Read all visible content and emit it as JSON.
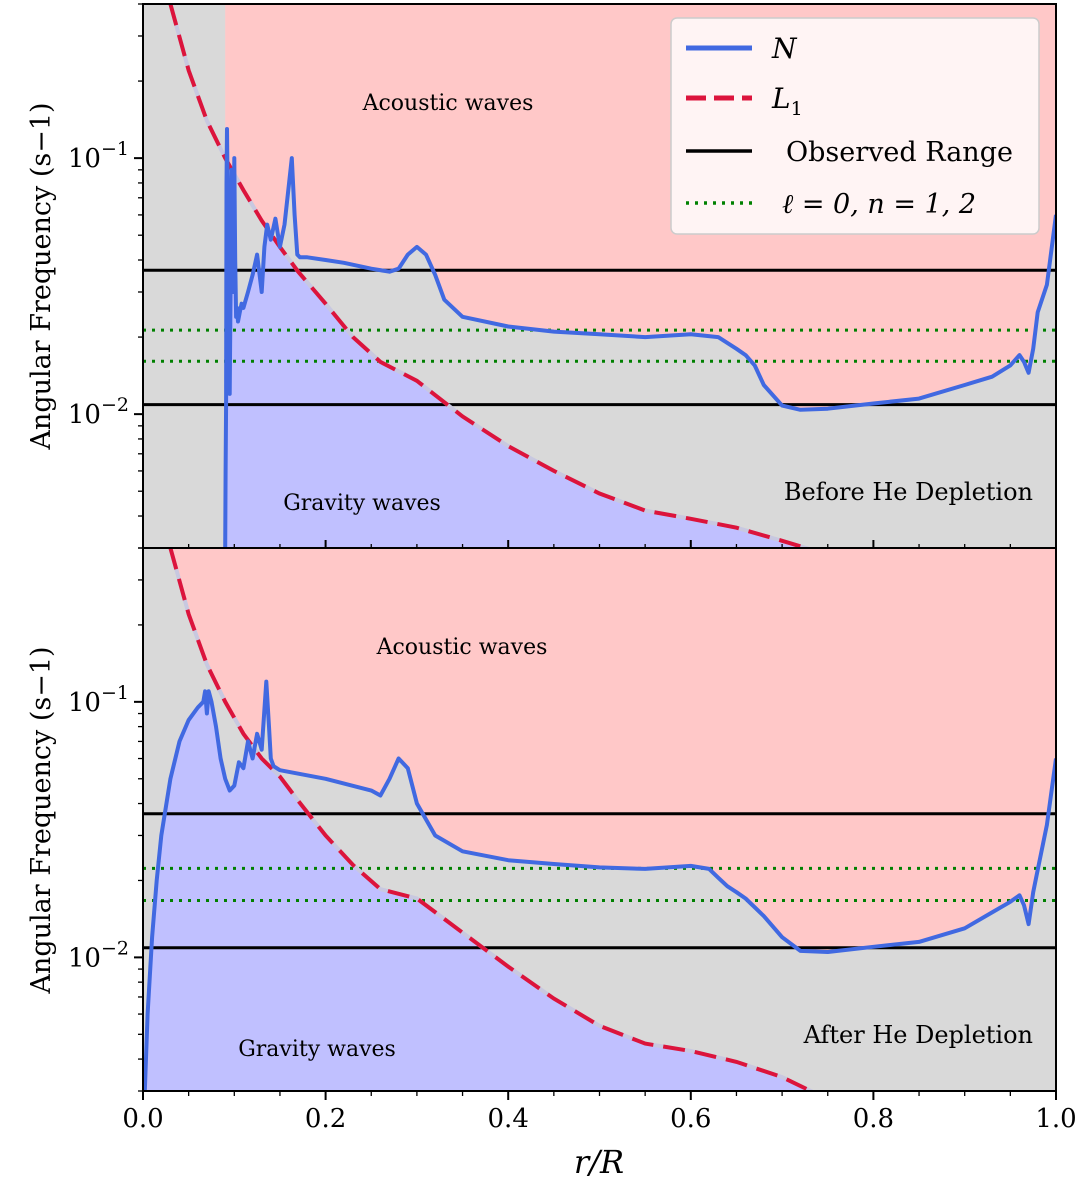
{
  "figure": {
    "shared_xlabel_main": "r/R",
    "legend": [
      {
        "label": "N",
        "color": "#4169E1",
        "style": "solid"
      },
      {
        "label": "L1",
        "color": "#DC143C",
        "style": "dashed"
      },
      {
        "label": "Observed Range",
        "color": "#000000",
        "style": "solid"
      },
      {
        "label": "ℓ = 0, n = 1, 2",
        "color": "#008000",
        "style": "dotted"
      }
    ],
    "region_colors": {
      "acoustic": "#FFC8C8",
      "gravity": "#C0C0FF",
      "neutral": "#D9D9D9"
    }
  },
  "chart_data": [
    {
      "type": "line",
      "panel": "Before He Depletion",
      "annotation": "Before He Depletion",
      "region_labels": {
        "acoustic": "Acoustic waves",
        "gravity": "Gravity waves"
      },
      "xlabel": "",
      "ylabel": "Angular Frequency (s−1)",
      "xlim": [
        0.0,
        1.0
      ],
      "ylim": [
        0.003,
        0.4
      ],
      "yscale": "log",
      "ytick_labels": [
        "10−2",
        "10−1"
      ],
      "ytick_values": [
        0.01,
        0.1
      ],
      "observed_range": [
        0.0109,
        0.0365
      ],
      "mode_frequencies": [
        0.0161,
        0.0213
      ],
      "series": [
        {
          "name": "N",
          "x": [
            0.09,
            0.0905,
            0.091,
            0.0915,
            0.092,
            0.093,
            0.094,
            0.095,
            0.097,
            0.099,
            0.1,
            0.101,
            0.102,
            0.103,
            0.104,
            0.106,
            0.108,
            0.11,
            0.115,
            0.12,
            0.125,
            0.13,
            0.133,
            0.136,
            0.14,
            0.145,
            0.15,
            0.155,
            0.16,
            0.163,
            0.166,
            0.169,
            0.172,
            0.18,
            0.2,
            0.22,
            0.25,
            0.27,
            0.28,
            0.29,
            0.3,
            0.31,
            0.32,
            0.33,
            0.35,
            0.4,
            0.45,
            0.5,
            0.55,
            0.6,
            0.63,
            0.65,
            0.66,
            0.67,
            0.68,
            0.7,
            0.72,
            0.75,
            0.8,
            0.85,
            0.9,
            0.93,
            0.95,
            0.96,
            0.965,
            0.97,
            0.975,
            0.98,
            0.99,
            1.0
          ],
          "y": [
            0.003,
            0.006,
            0.011,
            0.08,
            0.13,
            0.06,
            0.025,
            0.012,
            0.09,
            0.03,
            0.1,
            0.04,
            0.024,
            0.026,
            0.023,
            0.025,
            0.027,
            0.026,
            0.03,
            0.035,
            0.042,
            0.03,
            0.045,
            0.055,
            0.048,
            0.058,
            0.045,
            0.055,
            0.08,
            0.1,
            0.06,
            0.042,
            0.041,
            0.041,
            0.04,
            0.039,
            0.037,
            0.036,
            0.037,
            0.042,
            0.045,
            0.042,
            0.035,
            0.028,
            0.024,
            0.022,
            0.021,
            0.0205,
            0.02,
            0.0205,
            0.02,
            0.018,
            0.017,
            0.0155,
            0.013,
            0.0108,
            0.0104,
            0.0105,
            0.011,
            0.0115,
            0.013,
            0.014,
            0.0155,
            0.017,
            0.016,
            0.0145,
            0.018,
            0.025,
            0.032,
            0.06
          ]
        },
        {
          "name": "L1",
          "x": [
            0.03,
            0.05,
            0.07,
            0.09,
            0.11,
            0.13,
            0.15,
            0.17,
            0.2,
            0.23,
            0.26,
            0.3,
            0.35,
            0.4,
            0.45,
            0.5,
            0.55,
            0.6,
            0.65,
            0.7,
            0.74
          ],
          "y": [
            0.4,
            0.22,
            0.14,
            0.1,
            0.075,
            0.057,
            0.045,
            0.036,
            0.027,
            0.02,
            0.016,
            0.0135,
            0.0098,
            0.0075,
            0.006,
            0.0049,
            0.0042,
            0.0039,
            0.0036,
            0.0032,
            0.0029
          ]
        }
      ]
    },
    {
      "type": "line",
      "panel": "After He Depletion",
      "annotation": "After He Depletion",
      "region_labels": {
        "acoustic": "Acoustic waves",
        "gravity": "Gravity waves"
      },
      "xlabel": "r/R",
      "ylabel": "Angular Frequency (s−1)",
      "xlim": [
        0.0,
        1.0
      ],
      "ylim": [
        0.003,
        0.4
      ],
      "yscale": "log",
      "xtick_labels": [
        "0.0",
        "0.2",
        "0.4",
        "0.6",
        "0.8",
        "1.0"
      ],
      "xtick_values": [
        0.0,
        0.2,
        0.4,
        0.6,
        0.8,
        1.0
      ],
      "ytick_labels": [
        "10−2",
        "10−1"
      ],
      "ytick_values": [
        0.01,
        0.1
      ],
      "observed_range": [
        0.0109,
        0.0365
      ],
      "mode_frequencies": [
        0.0167,
        0.0223
      ],
      "series": [
        {
          "name": "N",
          "x": [
            0.002,
            0.005,
            0.01,
            0.015,
            0.02,
            0.03,
            0.04,
            0.05,
            0.06,
            0.066,
            0.068,
            0.07,
            0.072,
            0.075,
            0.08,
            0.085,
            0.09,
            0.095,
            0.1,
            0.105,
            0.11,
            0.115,
            0.12,
            0.125,
            0.13,
            0.135,
            0.138,
            0.14,
            0.143,
            0.15,
            0.2,
            0.25,
            0.26,
            0.27,
            0.28,
            0.29,
            0.3,
            0.32,
            0.35,
            0.4,
            0.45,
            0.5,
            0.55,
            0.6,
            0.62,
            0.63,
            0.64,
            0.65,
            0.66,
            0.68,
            0.7,
            0.72,
            0.75,
            0.8,
            0.85,
            0.9,
            0.93,
            0.95,
            0.96,
            0.965,
            0.97,
            0.975,
            0.98,
            0.99,
            1.0
          ],
          "y": [
            0.003,
            0.006,
            0.012,
            0.02,
            0.03,
            0.05,
            0.07,
            0.085,
            0.095,
            0.1,
            0.11,
            0.09,
            0.11,
            0.1,
            0.08,
            0.06,
            0.05,
            0.045,
            0.047,
            0.058,
            0.055,
            0.07,
            0.06,
            0.075,
            0.065,
            0.12,
            0.08,
            0.06,
            0.056,
            0.054,
            0.05,
            0.045,
            0.043,
            0.05,
            0.06,
            0.055,
            0.04,
            0.03,
            0.026,
            0.024,
            0.0232,
            0.0225,
            0.0222,
            0.0228,
            0.0222,
            0.0205,
            0.019,
            0.018,
            0.017,
            0.0145,
            0.012,
            0.0106,
            0.0105,
            0.011,
            0.0115,
            0.013,
            0.015,
            0.0165,
            0.0175,
            0.016,
            0.0135,
            0.018,
            0.022,
            0.033,
            0.06
          ]
        },
        {
          "name": "L1",
          "x": [
            0.03,
            0.05,
            0.07,
            0.09,
            0.11,
            0.13,
            0.15,
            0.17,
            0.2,
            0.23,
            0.26,
            0.3,
            0.35,
            0.4,
            0.45,
            0.5,
            0.55,
            0.6,
            0.65,
            0.7,
            0.74
          ],
          "y": [
            0.4,
            0.22,
            0.14,
            0.1,
            0.075,
            0.06,
            0.051,
            0.041,
            0.03,
            0.023,
            0.0185,
            0.017,
            0.0125,
            0.0092,
            0.0069,
            0.0054,
            0.0046,
            0.0043,
            0.0039,
            0.0034,
            0.0029
          ]
        }
      ]
    }
  ]
}
